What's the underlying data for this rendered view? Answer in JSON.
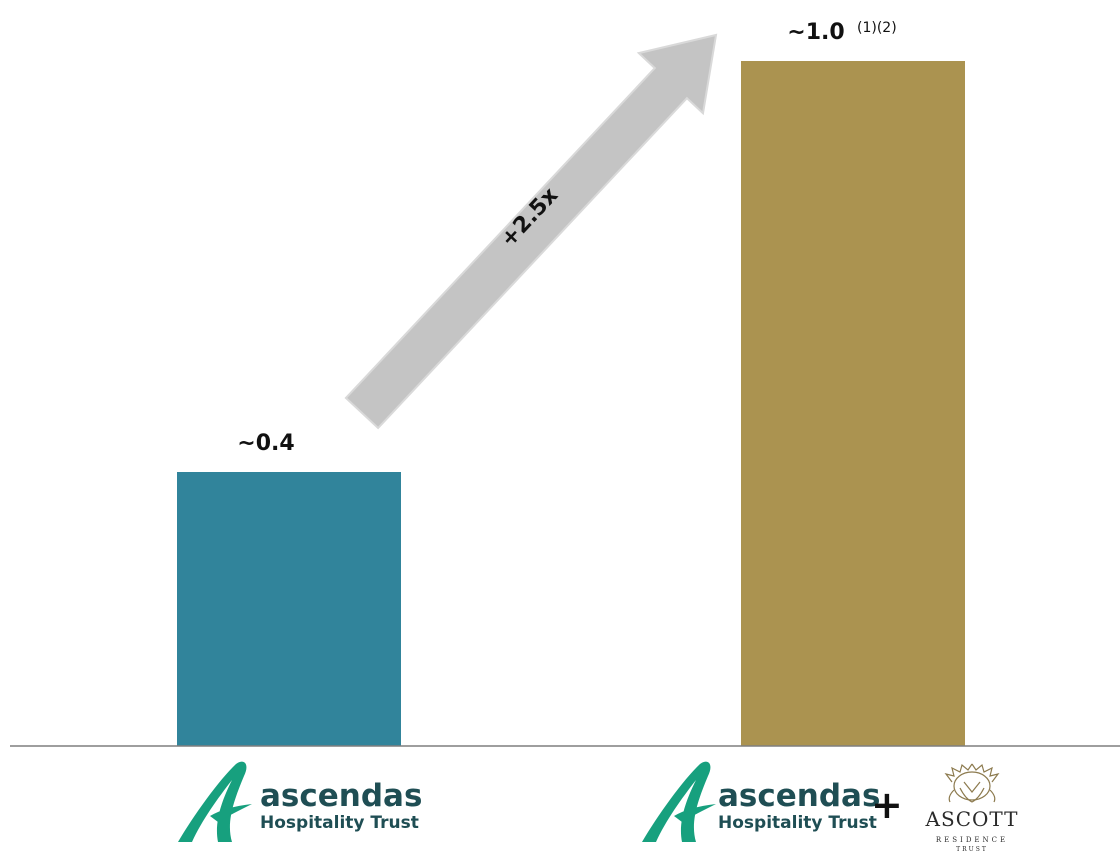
{
  "colors": {
    "ahtBar": "#31849b",
    "combinedBar": "#ab9350",
    "arrow": "#c4c4c4",
    "logoGreen": "#17a07e",
    "logoText": "#1f4e54",
    "baseline": "#7f7f7f"
  },
  "chart_data": {
    "type": "bar",
    "categories": [
      "Ascendas Hospitality Trust",
      "Ascendas Hospitality Trust + Ascott Residence Trust"
    ],
    "values": [
      0.4,
      1.0
    ],
    "value_labels": [
      "~0.4",
      "~1.0"
    ],
    "footnote_marks": [
      "",
      "(1)(2)"
    ],
    "growth_label": "+2.5x",
    "ylim": [
      0,
      1.0
    ],
    "grid": false
  },
  "logos": {
    "aht_line1": "ascendas",
    "aht_line2": "Hospitality Trust",
    "plus": "+",
    "ascott_name": "ASCOTT",
    "ascott_sub1": "RESIDENCE",
    "ascott_sub2": "TRUST",
    "icons": [
      "ascendas-swoosh-icon",
      "ascott-crest-icon"
    ]
  }
}
